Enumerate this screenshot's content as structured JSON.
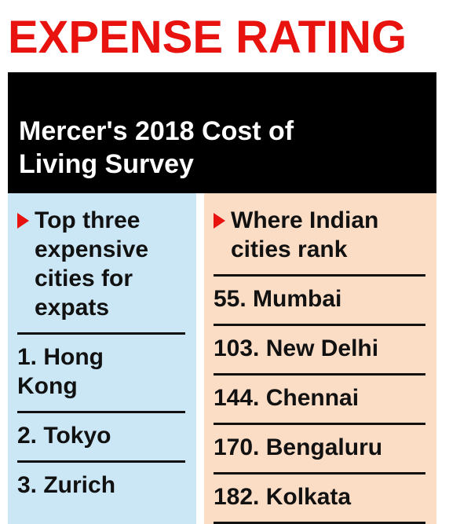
{
  "title": "EXPENSE RATING",
  "subtitle": "Mercer's 2018 Cost of\nLiving Survey",
  "left_column": {
    "heading": "Top three\nexpensive\ncities for\nexpats",
    "items": [
      "1. Hong\nKong",
      "2. Tokyo",
      "3. Zurich"
    ]
  },
  "right_column": {
    "heading": "Where Indian\ncities rank",
    "items": [
      "55. Mumbai",
      "103. New Delhi",
      "144. Chennai",
      "170. Bengaluru",
      "182. Kolkata"
    ]
  },
  "colors": {
    "title_red": "#e8120e",
    "header_bg": "#000000",
    "header_text": "#ffffff",
    "left_column_bg": "#cbe7f5",
    "right_column_bg": "#fbdcc5",
    "rule": "#111111"
  },
  "chart_data": {
    "type": "table",
    "title": "EXPENSE RATING",
    "subtitle": "Mercer's 2018 Cost of Living Survey",
    "tables": [
      {
        "heading": "Top three expensive cities for expats",
        "columns": [
          "rank",
          "city"
        ],
        "rows": [
          {
            "rank": 1,
            "city": "Hong Kong"
          },
          {
            "rank": 2,
            "city": "Tokyo"
          },
          {
            "rank": 3,
            "city": "Zurich"
          }
        ]
      },
      {
        "heading": "Where Indian cities rank",
        "columns": [
          "rank",
          "city"
        ],
        "rows": [
          {
            "rank": 55,
            "city": "Mumbai"
          },
          {
            "rank": 103,
            "city": "New Delhi"
          },
          {
            "rank": 144,
            "city": "Chennai"
          },
          {
            "rank": 170,
            "city": "Bengaluru"
          },
          {
            "rank": 182,
            "city": "Kolkata"
          }
        ]
      }
    ]
  }
}
